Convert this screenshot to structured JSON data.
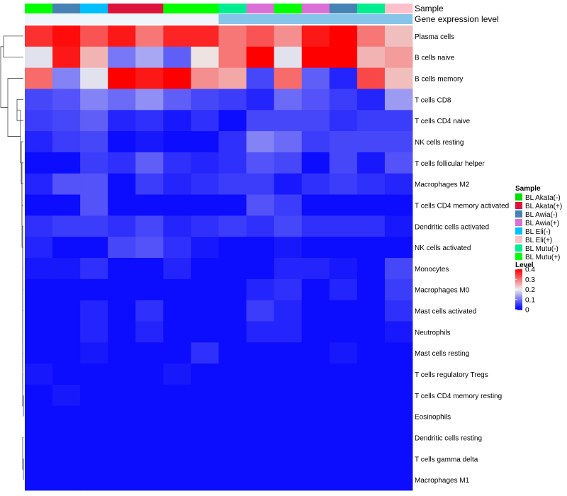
{
  "chart_data": {
    "type": "heatmap",
    "annotation_tracks": [
      "Sample",
      "Gene expression level"
    ],
    "rows": [
      "Plasma cells",
      "B cells naive",
      "B cells memory",
      "T cells CD8",
      "T cells CD4 naive",
      "NK cells resting",
      "T cells follicular helper",
      "Macrophages M2",
      "T cells CD4 memory activated",
      "Dendritic cells activated",
      "NK cells activated",
      "Monocytes",
      "Macrophages M0",
      "Mast cells activated",
      "Neutrophils",
      "Mast cells resting",
      "T cells regulatory  Tregs",
      "T cells CD4 memory resting",
      "Eosinophils",
      "Dendritic cells resting",
      "T cells gamma delta",
      "Macrophages M1"
    ],
    "columns": [
      {
        "sample": "BL Mutu(+)",
        "expression": "low"
      },
      {
        "sample": "BL Awia(-)",
        "expression": "low"
      },
      {
        "sample": "BL Eli(-)",
        "expression": "low"
      },
      {
        "sample": "BL Akata(+)",
        "expression": "low"
      },
      {
        "sample": "BL Akata(+)",
        "expression": "low"
      },
      {
        "sample": "BL Mutu(+)",
        "expression": "low"
      },
      {
        "sample": "BL Mutu(+)",
        "expression": "low"
      },
      {
        "sample": "BL Mutu(-)",
        "expression": "high"
      },
      {
        "sample": "BL Awia(+)",
        "expression": "high"
      },
      {
        "sample": "BL Mutu(+)",
        "expression": "high"
      },
      {
        "sample": "BL Awia(+)",
        "expression": "high"
      },
      {
        "sample": "BL Awia(-)",
        "expression": "high"
      },
      {
        "sample": "BL Mutu(-)",
        "expression": "high"
      },
      {
        "sample": "BL Eli(+)",
        "expression": "high"
      }
    ],
    "values": [
      [
        0.36,
        0.39,
        0.33,
        0.38,
        0.3,
        0.37,
        0.37,
        0.3,
        0.33,
        0.28,
        0.38,
        0.4,
        0.3,
        0.24
      ],
      [
        0.19,
        0.38,
        0.25,
        0.1,
        0.14,
        0.08,
        0.21,
        0.3,
        0.42,
        0.19,
        0.42,
        0.42,
        0.25,
        0.27
      ],
      [
        0.31,
        0.11,
        0.19,
        0.41,
        0.38,
        0.42,
        0.28,
        0.26,
        0.06,
        0.31,
        0.08,
        0.03,
        0.34,
        0.24
      ],
      [
        0.06,
        0.07,
        0.11,
        0.09,
        0.12,
        0.08,
        0.06,
        0.05,
        0.03,
        0.09,
        0.07,
        0.05,
        0.03,
        0.13
      ],
      [
        0.05,
        0.06,
        0.08,
        0.03,
        0.04,
        0.02,
        0.04,
        0.01,
        0.06,
        0.06,
        0.06,
        0.04,
        0.05,
        0.05
      ],
      [
        0.03,
        0.05,
        0.06,
        0.01,
        0.02,
        0.01,
        0.01,
        0.04,
        0.11,
        0.09,
        0.05,
        0.06,
        0.06,
        0.06
      ],
      [
        0.01,
        0.01,
        0.05,
        0.04,
        0.08,
        0.04,
        0.03,
        0.04,
        0.07,
        0.06,
        0.01,
        0.06,
        0.02,
        0.07
      ],
      [
        0.03,
        0.07,
        0.07,
        0.01,
        0.05,
        0.03,
        0.04,
        0.05,
        0.05,
        0.02,
        0.04,
        0.05,
        0.04,
        0.03
      ],
      [
        0.01,
        0.01,
        0.07,
        0.01,
        0.01,
        0.01,
        0.01,
        0.01,
        0.07,
        0.05,
        0.01,
        0.01,
        0.01,
        0.01
      ],
      [
        0.04,
        0.05,
        0.05,
        0.04,
        0.06,
        0.03,
        0.04,
        0.05,
        0.04,
        0.06,
        0.04,
        0.04,
        0.04,
        0.02
      ],
      [
        0.03,
        0.01,
        0.01,
        0.06,
        0.07,
        0.04,
        0.02,
        0.01,
        0.01,
        0.02,
        0.01,
        0.01,
        0.01,
        0.01
      ],
      [
        0.02,
        0.02,
        0.04,
        0.01,
        0.01,
        0.03,
        0.01,
        0.01,
        0.01,
        0.03,
        0.03,
        0.02,
        0.01,
        0.06
      ],
      [
        0.01,
        0.01,
        0.01,
        0.01,
        0.01,
        0.01,
        0.01,
        0.01,
        0.03,
        0.04,
        0.01,
        0.03,
        0.01,
        0.05
      ],
      [
        0.01,
        0.01,
        0.03,
        0.01,
        0.04,
        0.01,
        0.01,
        0.01,
        0.05,
        0.03,
        0.01,
        0.01,
        0.01,
        0.04
      ],
      [
        0.01,
        0.01,
        0.03,
        0.01,
        0.03,
        0.01,
        0.01,
        0.01,
        0.03,
        0.03,
        0.01,
        0.01,
        0.01,
        0.02
      ],
      [
        0.01,
        0.01,
        0.02,
        0.01,
        0.01,
        0.01,
        0.04,
        0.01,
        0.01,
        0.01,
        0.01,
        0.02,
        0.01,
        0.01
      ],
      [
        0.02,
        0.01,
        0.01,
        0.01,
        0.01,
        0.02,
        0.01,
        0.01,
        0.01,
        0.01,
        0.01,
        0.01,
        0.01,
        0.01
      ],
      [
        0.01,
        0.02,
        0.01,
        0.01,
        0.01,
        0.01,
        0.01,
        0.01,
        0.01,
        0.01,
        0.01,
        0.01,
        0.01,
        0.01
      ],
      [
        0.01,
        0.01,
        0.01,
        0.01,
        0.01,
        0.01,
        0.01,
        0.01,
        0.01,
        0.01,
        0.01,
        0.01,
        0.01,
        0.01
      ],
      [
        0.01,
        0.01,
        0.01,
        0.01,
        0.01,
        0.01,
        0.01,
        0.01,
        0.01,
        0.01,
        0.01,
        0.01,
        0.01,
        0.01
      ],
      [
        0.01,
        0.01,
        0.01,
        0.01,
        0.01,
        0.01,
        0.01,
        0.01,
        0.01,
        0.01,
        0.01,
        0.01,
        0.01,
        0.01
      ],
      [
        0.01,
        0.01,
        0.01,
        0.01,
        0.01,
        0.01,
        0.01,
        0.01,
        0.01,
        0.01,
        0.01,
        0.01,
        0.01,
        0.01
      ]
    ],
    "color_scale": {
      "min": 0,
      "mid": 0.2,
      "max": 0.4,
      "low_color": "#0000ff",
      "mid_color": "#eeeeee",
      "high_color": "#ff0000"
    },
    "sample_legend": {
      "title": "Sample",
      "entries": [
        {
          "label": "BL Akata(-)",
          "color": "#00e000"
        },
        {
          "label": "BL Akata(+)",
          "color": "#dc143c"
        },
        {
          "label": "BL Awia(-)",
          "color": "#4682b4"
        },
        {
          "label": "BL Awia(+)",
          "color": "#da70d6"
        },
        {
          "label": "BL Eli(-)",
          "color": "#00bfff"
        },
        {
          "label": "BL Eli(+)",
          "color": "#ffc0cb"
        },
        {
          "label": "BL Mutu(-)",
          "color": "#00ee90"
        },
        {
          "label": "BL Mutu(+)",
          "color": "#00ff00"
        }
      ]
    },
    "expression_colors": {
      "low": "#eef5fb",
      "high": "#86c5ea"
    },
    "level_legend": {
      "title": "Level",
      "ticks": [
        "0.4",
        "0.3",
        "0.2",
        "0.1",
        "0"
      ],
      "tick_values": [
        0.4,
        0.3,
        0.2,
        0.1,
        0
      ]
    },
    "dendrogram": [
      {
        "left": 0,
        "right": 1
      },
      {
        "left": 3,
        "right": 4
      },
      {
        "left": 17,
        "right": 18
      },
      {
        "left": 20,
        "right": 21
      },
      {
        "left": 19,
        "right": 25
      },
      {
        "left": 16,
        "right": 24
      },
      {
        "left": 15,
        "right": 27
      },
      {
        "left": 14,
        "right": 28
      },
      {
        "left": 13,
        "right": 29
      },
      {
        "left": 12,
        "right": 30
      },
      {
        "left": 11,
        "right": 31
      },
      {
        "left": 10,
        "right": 32
      },
      {
        "left": 9,
        "right": 33
      },
      {
        "left": 8,
        "right": 34
      },
      {
        "left": 7,
        "right": 35
      },
      {
        "left": 6,
        "right": 36
      },
      {
        "left": 5,
        "right": 37
      },
      {
        "left": 23,
        "right": 38
      },
      {
        "left": 2,
        "right": 39
      },
      {
        "left": 22,
        "right": 40
      }
    ]
  }
}
